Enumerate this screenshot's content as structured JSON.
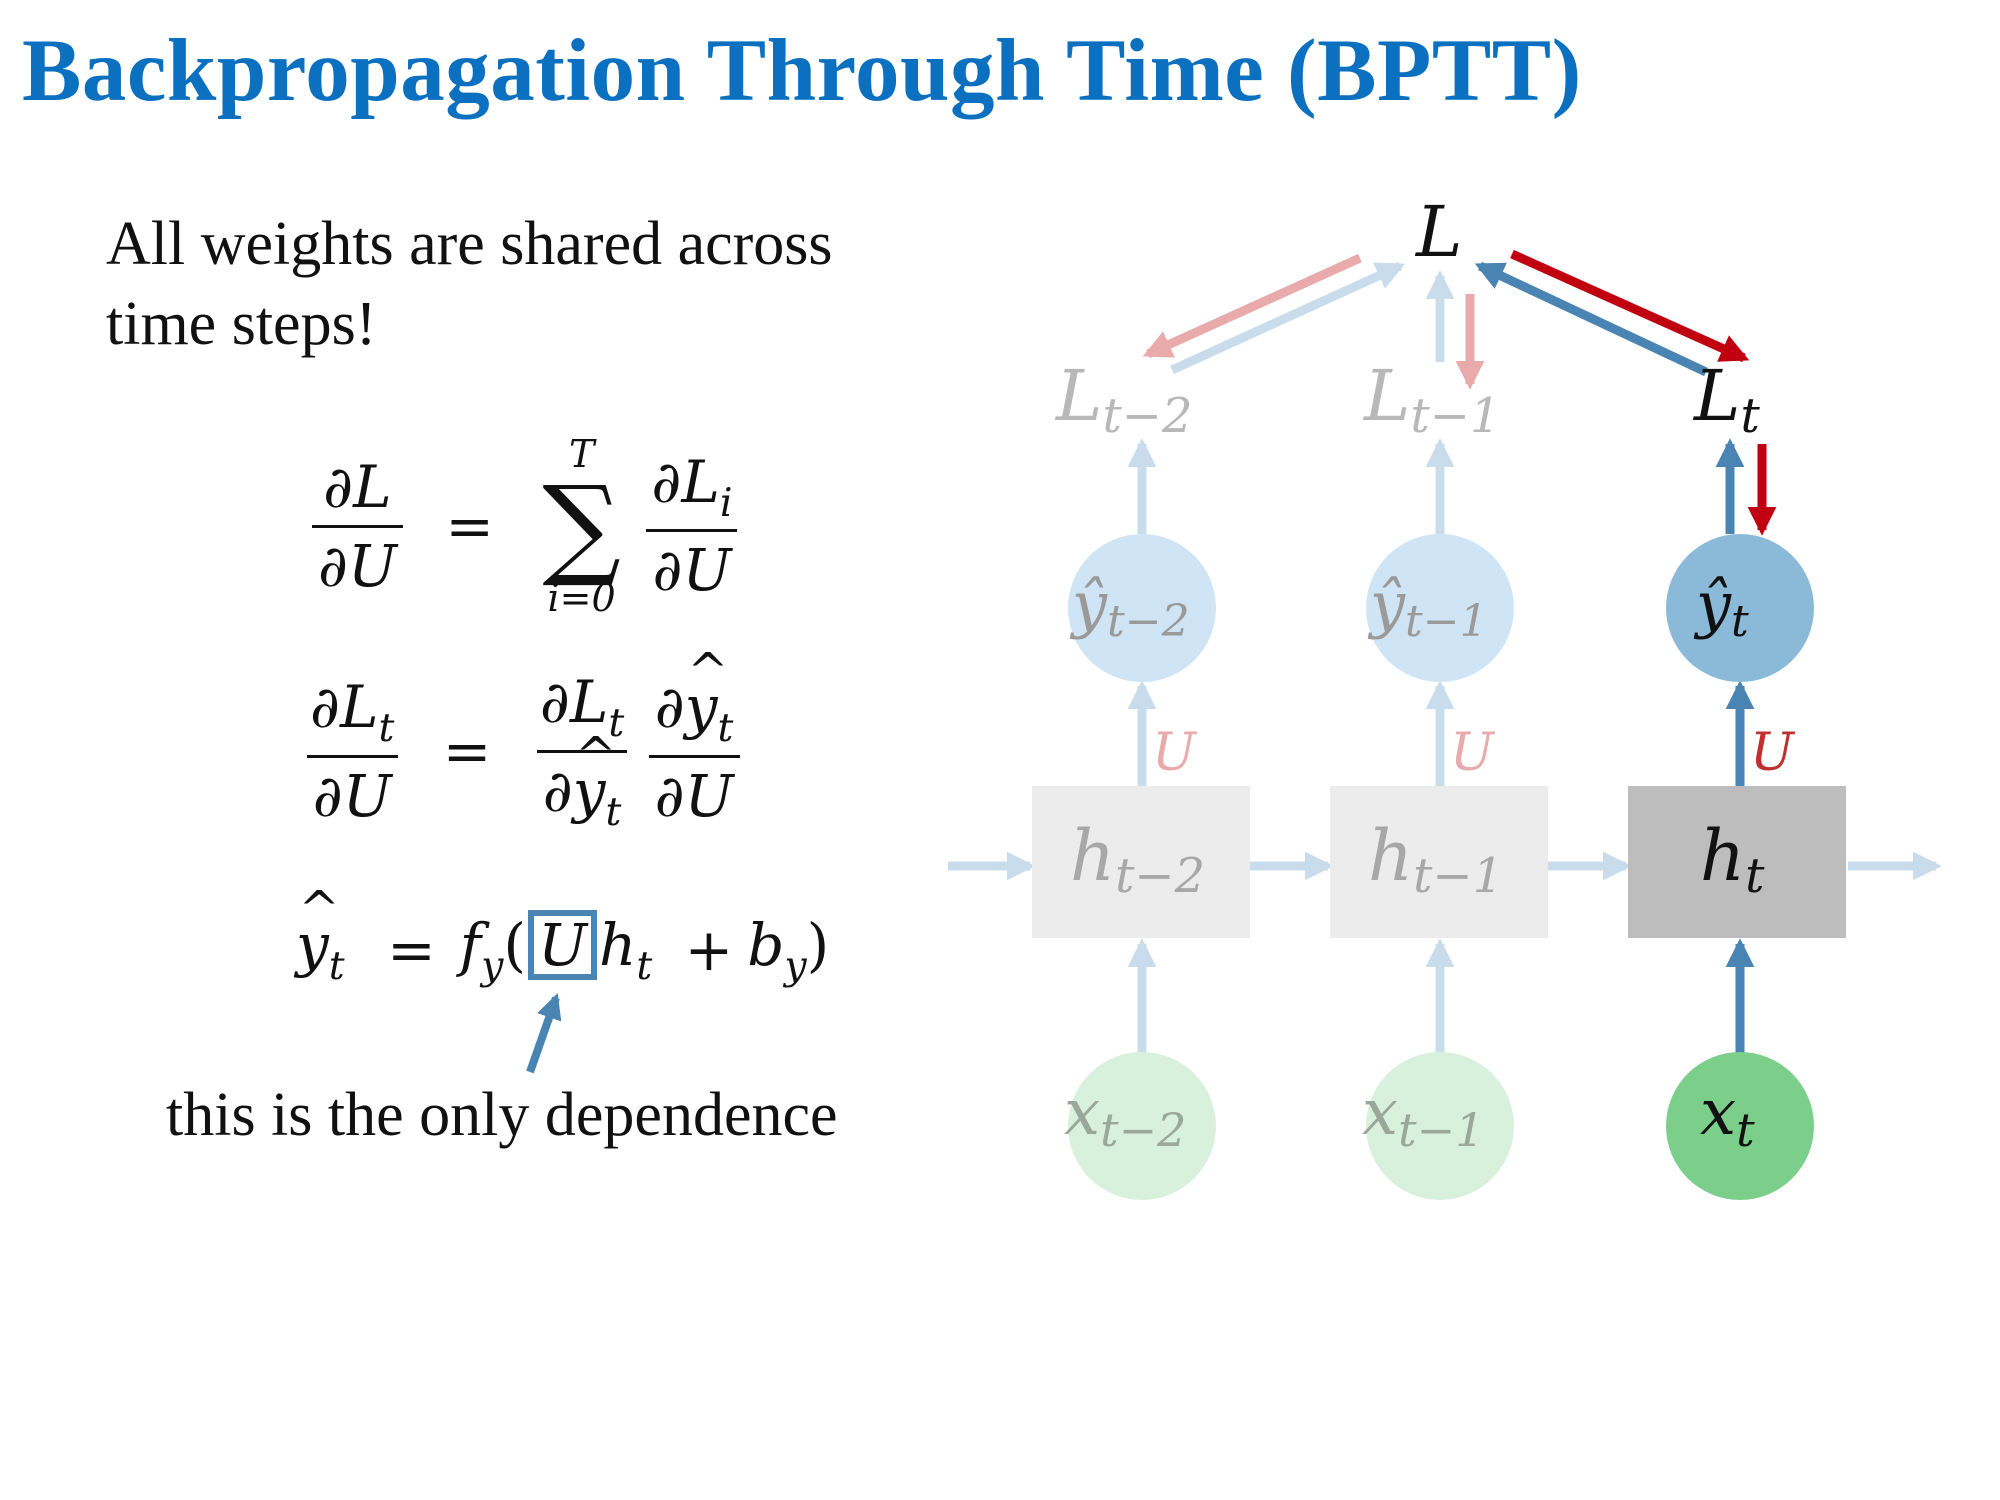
{
  "slide": {
    "title": "Backpropagation Through Time (BPTT)",
    "note": "All weights are shared across time steps!",
    "caption": "this is the only dependence"
  },
  "equations": {
    "eq1": {
      "lhs_num": "∂L",
      "lhs_den": "∂U",
      "eq": "=",
      "sum": "∑",
      "sum_top": "T",
      "sum_bottom": "i=0",
      "rhs_num": "∂L",
      "rhs_num_sub": "i",
      "rhs_den": "∂U"
    },
    "eq2": {
      "lhs_num": "∂L",
      "lhs_num_sub": "t",
      "lhs_den": "∂U",
      "eq": "=",
      "f1_num": "∂L",
      "f1_num_sub": "t",
      "f1_den": "∂",
      "f1_den_y": "y",
      "f1_den_sub": "t",
      "f2_num": "∂",
      "f2_num_y": "y",
      "f2_num_sub": "t",
      "f2_den": "∂U"
    },
    "eq3": {
      "lhs": "y",
      "lhs_sub": "t",
      "eq": "=",
      "f": "f",
      "f_sub": "y",
      "open": "(",
      "U": "U",
      "h": "h",
      "h_sub": "t",
      "plus": "+",
      "b": "b",
      "b_sub": "y",
      "close": ")"
    }
  },
  "diagram": {
    "loss": {
      "symbol": "L"
    },
    "columns": [
      {
        "loss": "L",
        "loss_sub": "t−2",
        "output": "ŷ",
        "output_sub": "t−2",
        "weight": "U",
        "hidden": "h",
        "hidden_sub": "t−2",
        "input": "x",
        "input_sub": "t−2",
        "faded": true
      },
      {
        "loss": "L",
        "loss_sub": "t−1",
        "output": "ŷ",
        "output_sub": "t−1",
        "weight": "U",
        "hidden": "h",
        "hidden_sub": "t−1",
        "input": "x",
        "input_sub": "t−1",
        "faded": true
      },
      {
        "loss": "L",
        "loss_sub": "t",
        "output": "ŷ",
        "output_sub": "t",
        "weight": "U",
        "hidden": "h",
        "hidden_sub": "t",
        "input": "x",
        "input_sub": "t",
        "faded": false
      }
    ]
  },
  "colors": {
    "title": "#0b70bf",
    "forward_arrow": "#4a84b3",
    "forward_arrow_faded": "#c9dcec",
    "backward_arrow": "#c00010",
    "backward_arrow_faded": "#e8aaaa",
    "output_node": "#8bbad9",
    "output_node_faded": "#cfe5f5",
    "hidden_node": "#bdbdbd",
    "hidden_node_faded": "#ececec",
    "input_node": "#7ccf8a",
    "input_node_faded": "#d8f1dc"
  }
}
